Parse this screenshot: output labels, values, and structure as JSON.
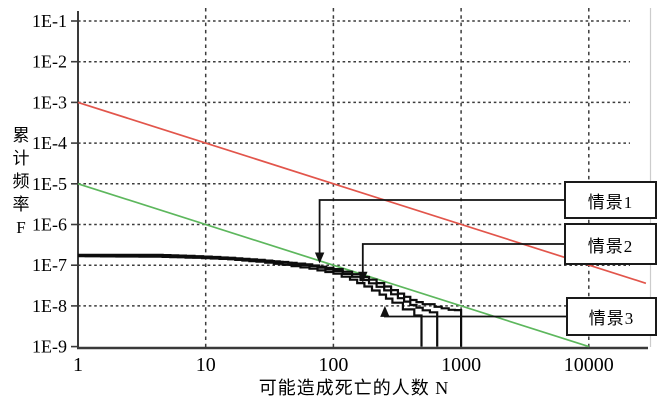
{
  "chart_data": {
    "type": "line",
    "title": "",
    "xlabel": "可能造成死亡的人数 N",
    "ylabel": "累计频率F",
    "ylabel_display": "累\n计\n频\n率\nF",
    "x_scale": "log",
    "y_scale": "log",
    "xlim": [
      1,
      30000
    ],
    "ylim": [
      1e-09,
      0.1
    ],
    "grid": "dashed",
    "x_ticks": [
      {
        "value": 1,
        "label": "1"
      },
      {
        "value": 10,
        "label": "10"
      },
      {
        "value": 100,
        "label": "100"
      },
      {
        "value": 1000,
        "label": "1000"
      },
      {
        "value": 10000,
        "label": "10000"
      }
    ],
    "y_ticks": [
      {
        "value": 0.1,
        "label": "1E-1"
      },
      {
        "value": 0.01,
        "label": "1E-2"
      },
      {
        "value": 0.001,
        "label": "1E-3"
      },
      {
        "value": 0.0001,
        "label": "1E-4"
      },
      {
        "value": 1e-05,
        "label": "1E-5"
      },
      {
        "value": 1e-06,
        "label": "1E-6"
      },
      {
        "value": 1e-07,
        "label": "1E-7"
      },
      {
        "value": 1e-08,
        "label": "1E-8"
      },
      {
        "value": 1e-09,
        "label": "1E-9"
      }
    ],
    "reference_lines": [
      {
        "name": "upper-risk-criterion-line",
        "color": "#e2554b",
        "points": [
          [
            1,
            0.001
          ],
          [
            28000,
            3.6e-08
          ]
        ]
      },
      {
        "name": "lower-risk-criterion-line",
        "color": "#5db75d",
        "points": [
          [
            1,
            1e-05
          ],
          [
            10000,
            1e-09
          ]
        ]
      }
    ],
    "series": [
      {
        "name": "情景1",
        "color": "#0d0d0d",
        "points": [
          [
            1,
            1.8e-07
          ],
          [
            4,
            1.8e-07
          ],
          [
            7,
            1.7e-07
          ],
          [
            13,
            1.55e-07
          ],
          [
            22,
            1.4e-07
          ],
          [
            38,
            1.2e-07
          ],
          [
            60,
            1.05e-07
          ],
          [
            100,
            8e-08
          ],
          [
            140,
            6e-08
          ],
          [
            190,
            4.4e-08
          ],
          [
            250,
            3e-08
          ],
          [
            320,
            2e-08
          ],
          [
            400,
            1.4e-08
          ],
          [
            500,
            1.1e-08
          ],
          [
            620,
            9.5e-09
          ],
          [
            800,
            8e-09
          ],
          [
            1000,
            7.8e-09
          ],
          [
            1000,
            1e-09
          ]
        ]
      },
      {
        "name": "情景2",
        "color": "#0d0d0d",
        "points": [
          [
            1,
            1.72e-07
          ],
          [
            4,
            1.7e-07
          ],
          [
            8,
            1.62e-07
          ],
          [
            15,
            1.5e-07
          ],
          [
            25,
            1.32e-07
          ],
          [
            40,
            1.15e-07
          ],
          [
            65,
            9.5e-08
          ],
          [
            100,
            7.2e-08
          ],
          [
            140,
            5.2e-08
          ],
          [
            190,
            3.6e-08
          ],
          [
            250,
            2.4e-08
          ],
          [
            320,
            1.55e-08
          ],
          [
            400,
            1.05e-08
          ],
          [
            500,
            7.8e-09
          ],
          [
            650,
            6.2e-09
          ],
          [
            650,
            1e-09
          ]
        ]
      },
      {
        "name": "情景3",
        "color": "#0d0d0d",
        "points": [
          [
            1,
            1.66e-07
          ],
          [
            4,
            1.62e-07
          ],
          [
            8,
            1.52e-07
          ],
          [
            15,
            1.4e-07
          ],
          [
            25,
            1.22e-07
          ],
          [
            40,
            1.02e-07
          ],
          [
            65,
            8.2e-08
          ],
          [
            100,
            6.2e-08
          ],
          [
            135,
            4.4e-08
          ],
          [
            175,
            3e-08
          ],
          [
            230,
            1.9e-08
          ],
          [
            290,
            1.2e-08
          ],
          [
            350,
            8.2e-09
          ],
          [
            430,
            5.8e-09
          ],
          [
            490,
            5.6e-09
          ],
          [
            490,
            1e-09
          ]
        ]
      }
    ],
    "annotations": [
      {
        "label": "情景1",
        "target_n": 78,
        "target_f": 1.1e-07,
        "direction": "down"
      },
      {
        "label": "情景2",
        "target_n": 170,
        "target_f": 3.7e-08,
        "direction": "down"
      },
      {
        "label": "情景3",
        "target_n": 253,
        "target_f": 1e-08,
        "direction": "up"
      }
    ]
  }
}
